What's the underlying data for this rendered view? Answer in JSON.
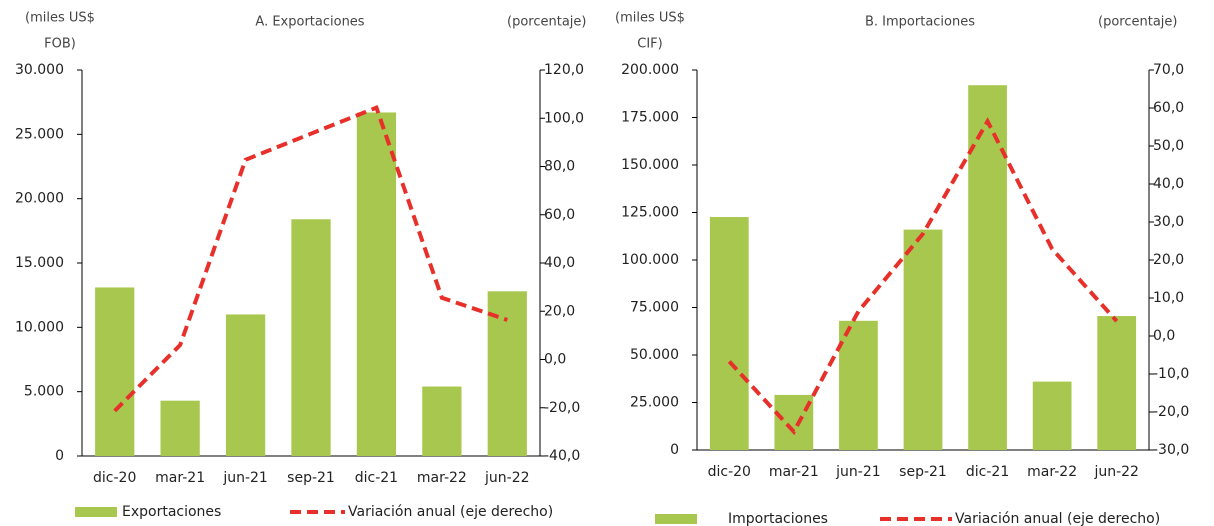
{
  "chart_data": [
    {
      "type": "bar_line",
      "title": "A. Exportaciones",
      "y_label": [
        "(miles US$",
        "FOB)"
      ],
      "y2_label": "(porcentaje)",
      "categories": [
        "dic-20",
        "mar-21",
        "jun-21",
        "sep-21",
        "dic-21",
        "mar-22",
        "jun-22"
      ],
      "series": [
        {
          "name": "Exportaciones",
          "type": "bar",
          "color": "#a8c74f",
          "values": [
            13100,
            4300,
            11000,
            18400,
            26700,
            5400,
            12800
          ]
        },
        {
          "name": "Variación anual (eje derecho)",
          "type": "line",
          "axis": "y2",
          "color": "#e8302a",
          "values": [
            -21.3,
            6.0,
            82.8,
            93.6,
            104.4,
            25.6,
            16.4
          ]
        }
      ],
      "ylim": [
        0,
        30000
      ],
      "yticks": [
        0,
        {
          "value": 5000,
          "label": "5.000"
        },
        {
          "value": 10000,
          "label": "10.000"
        },
        {
          "value": 15000,
          "label": "15.000"
        },
        {
          "value": 20000,
          "label": "20.000"
        },
        {
          "value": 25000,
          "label": "25.000"
        },
        {
          "value": 30000,
          "label": "30.000"
        }
      ],
      "y2lim": [
        -40,
        120
      ],
      "y2ticks": [
        {
          "value": -40,
          "label": "-40,0"
        },
        {
          "value": -20,
          "label": "-20,0"
        },
        {
          "value": 0,
          "label": "0,0"
        },
        {
          "value": 20,
          "label": "20,0"
        },
        {
          "value": 40,
          "label": "40,0"
        },
        {
          "value": 60,
          "label": "60,0"
        },
        {
          "value": 80,
          "label": "80,0"
        },
        {
          "value": 100,
          "label": "100,0"
        },
        {
          "value": 120,
          "label": "120,0"
        }
      ]
    },
    {
      "type": "bar_line",
      "title": "B. Importaciones",
      "y_label": [
        "(miles US$",
        "CIF)"
      ],
      "y2_label": "(porcentaje)",
      "categories": [
        "dic-20",
        "mar-21",
        "jun-21",
        "sep-21",
        "dic-21",
        "mar-22",
        "jun-22"
      ],
      "series": [
        {
          "name": "Importaciones",
          "type": "bar",
          "color": "#a8c74f",
          "values": [
            122600,
            29000,
            68000,
            116000,
            192000,
            36000,
            70500
          ]
        },
        {
          "name": "Variación anual (eje derecho)",
          "type": "line",
          "axis": "y2",
          "color": "#e8302a",
          "values": [
            -6.7,
            -25.2,
            6.5,
            26.9,
            56.5,
            22.9,
            3.9
          ]
        }
      ],
      "ylim": [
        0,
        200000
      ],
      "yticks": [
        0,
        {
          "value": 25000,
          "label": "25.000"
        },
        {
          "value": 50000,
          "label": "50.000"
        },
        {
          "value": 75000,
          "label": "75.000"
        },
        {
          "value": 100000,
          "label": "100.000"
        },
        {
          "value": 125000,
          "label": "125.000"
        },
        {
          "value": 150000,
          "label": "150.000"
        },
        {
          "value": 175000,
          "label": "175.000"
        },
        {
          "value": 200000,
          "label": "200.000"
        }
      ],
      "y2lim": [
        -30,
        70
      ],
      "y2ticks": [
        {
          "value": -30,
          "label": "-30,0"
        },
        {
          "value": -20,
          "label": "-20,0"
        },
        {
          "value": -10,
          "label": "-10,0"
        },
        {
          "value": 0,
          "label": "0,0"
        },
        {
          "value": 10,
          "label": "10,0"
        },
        {
          "value": 20,
          "label": "20,0"
        },
        {
          "value": 30,
          "label": "30,0"
        },
        {
          "value": 40,
          "label": "40,0"
        },
        {
          "value": 50,
          "label": "50,0"
        },
        {
          "value": 60,
          "label": "60,0"
        },
        {
          "value": 70,
          "label": "70,0"
        }
      ]
    }
  ]
}
